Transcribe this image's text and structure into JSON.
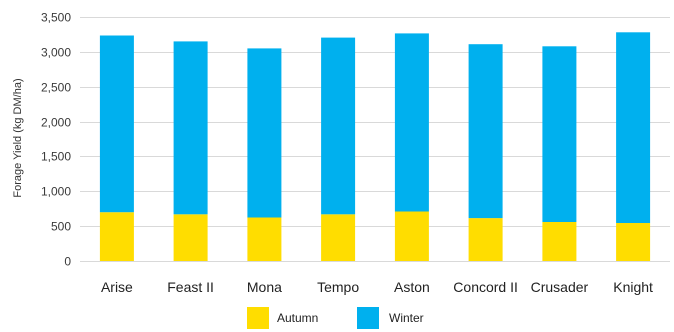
{
  "chart_data": {
    "type": "bar",
    "stacked": true,
    "title": "",
    "xlabel": "",
    "ylabel": "Forage Yield (kg DM/ha)",
    "ylim": [
      0,
      3500
    ],
    "yticks": [
      0,
      500,
      1000,
      1500,
      2000,
      2500,
      3000,
      3500
    ],
    "ytick_labels": [
      "0",
      "500",
      "1,000",
      "1,500",
      "2,000",
      "2,500",
      "3,000",
      "3,500"
    ],
    "grid": true,
    "legend": "bottom-center",
    "categories": [
      "Arise",
      "Feast II",
      "Mona",
      "Tempo",
      "Aston",
      "Concord II",
      "Crusader",
      "Knight"
    ],
    "series": [
      {
        "name": "Autumn",
        "color": "#ffdd00",
        "values": [
          700,
          670,
          625,
          670,
          710,
          615,
          560,
          545
        ]
      },
      {
        "name": "Winter",
        "color": "#00b0ee",
        "values": [
          2535,
          2480,
          2425,
          2535,
          2555,
          2495,
          2520,
          2735
        ]
      }
    ]
  }
}
